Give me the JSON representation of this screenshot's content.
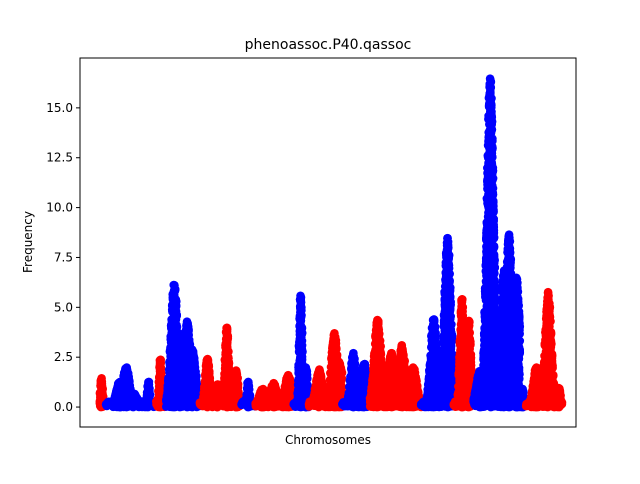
{
  "chart_data": {
    "type": "scatter",
    "title": "phenoassoc.P40.qassoc",
    "xlabel": "Chromosomes",
    "ylabel": "Frequency",
    "xlim": [
      0,
      100
    ],
    "ylim": [
      -1,
      17.5
    ],
    "yticks": [
      0.0,
      2.5,
      5.0,
      7.5,
      10.0,
      12.5,
      15.0
    ],
    "ytick_labels": [
      "0.0",
      "2.5",
      "5.0",
      "7.5",
      "10.0",
      "12.5",
      "15.0"
    ],
    "x_ticks_shown": false,
    "grid": false,
    "legend": "none",
    "colors": {
      "odd_chromosome": "#0000ff",
      "even_chromosome": "#ff0000"
    },
    "series": [
      {
        "chromosome": 1,
        "color": "#ff0000",
        "x_start": 4.0,
        "x_end": 5.0,
        "peaks": [
          {
            "x": 4.3,
            "y": 1.5
          }
        ]
      },
      {
        "chromosome": 2,
        "color": "#0000ff",
        "x_start": 5.3,
        "x_end": 13.0,
        "peaks": [
          {
            "x": 8.0,
            "y": 1.3
          },
          {
            "x": 9.3,
            "y": 2.0
          },
          {
            "x": 10.8,
            "y": 0.7
          }
        ]
      },
      {
        "chromosome": 3,
        "color": "#0000ff",
        "x_start": 13.0,
        "x_end": 15.4,
        "peaks": [
          {
            "x": 13.8,
            "y": 1.3
          }
        ]
      },
      {
        "chromosome": 4,
        "color": "#ff0000",
        "x_start": 15.4,
        "x_end": 17.4,
        "peaks": [
          {
            "x": 16.2,
            "y": 2.5
          }
        ]
      },
      {
        "chromosome": 5,
        "color": "#0000ff",
        "x_start": 17.4,
        "x_end": 24.2,
        "peaks": [
          {
            "x": 19.0,
            "y": 6.2
          },
          {
            "x": 20.2,
            "y": 3.7
          },
          {
            "x": 21.6,
            "y": 4.3
          },
          {
            "x": 22.7,
            "y": 2.9
          }
        ]
      },
      {
        "chromosome": 6,
        "color": "#ff0000",
        "x_start": 24.2,
        "x_end": 28.9,
        "peaks": [
          {
            "x": 25.7,
            "y": 2.5
          },
          {
            "x": 27.8,
            "y": 1.2
          }
        ]
      },
      {
        "chromosome": 7,
        "color": "#ff0000",
        "x_start": 28.9,
        "x_end": 32.6,
        "peaks": [
          {
            "x": 29.6,
            "y": 4.1
          },
          {
            "x": 31.5,
            "y": 1.9
          }
        ]
      },
      {
        "chromosome": 8,
        "color": "#0000ff",
        "x_start": 32.6,
        "x_end": 35.4,
        "peaks": [
          {
            "x": 33.9,
            "y": 1.3
          }
        ]
      },
      {
        "chromosome": 9,
        "color": "#ff0000",
        "x_start": 35.4,
        "x_end": 43.1,
        "peaks": [
          {
            "x": 36.8,
            "y": 0.9
          },
          {
            "x": 39.0,
            "y": 1.2
          },
          {
            "x": 42.0,
            "y": 1.6
          }
        ]
      },
      {
        "chromosome": 10,
        "color": "#0000ff",
        "x_start": 43.1,
        "x_end": 46.2,
        "peaks": [
          {
            "x": 44.5,
            "y": 5.6
          },
          {
            "x": 45.6,
            "y": 2.0
          }
        ]
      },
      {
        "chromosome": 11,
        "color": "#ff0000",
        "x_start": 46.2,
        "x_end": 52.9,
        "peaks": [
          {
            "x": 48.2,
            "y": 1.9
          },
          {
            "x": 51.3,
            "y": 3.7
          },
          {
            "x": 52.3,
            "y": 2.3
          }
        ]
      },
      {
        "chromosome": 12,
        "color": "#0000ff",
        "x_start": 52.9,
        "x_end": 58.5,
        "peaks": [
          {
            "x": 55.1,
            "y": 2.7
          },
          {
            "x": 57.3,
            "y": 2.2
          }
        ]
      },
      {
        "chromosome": 13,
        "color": "#ff0000",
        "x_start": 58.5,
        "x_end": 68.8,
        "peaks": [
          {
            "x": 60.0,
            "y": 4.4
          },
          {
            "x": 62.8,
            "y": 2.7
          },
          {
            "x": 64.9,
            "y": 3.1
          },
          {
            "x": 67.2,
            "y": 2.0
          }
        ]
      },
      {
        "chromosome": 14,
        "color": "#0000ff",
        "x_start": 68.8,
        "x_end": 75.4,
        "peaks": [
          {
            "x": 71.3,
            "y": 4.4
          },
          {
            "x": 74.1,
            "y": 8.5
          }
        ]
      },
      {
        "chromosome": 15,
        "color": "#ff0000",
        "x_start": 75.4,
        "x_end": 79.4,
        "peaks": [
          {
            "x": 77.0,
            "y": 5.5
          },
          {
            "x": 78.4,
            "y": 4.5
          }
        ]
      },
      {
        "chromosome": 16,
        "color": "#0000ff",
        "x_start": 79.4,
        "x_end": 88.7,
        "peaks": [
          {
            "x": 80.6,
            "y": 1.8
          },
          {
            "x": 82.7,
            "y": 16.5
          },
          {
            "x": 85.5,
            "y": 6.9
          },
          {
            "x": 86.5,
            "y": 8.7
          },
          {
            "x": 88.0,
            "y": 6.5
          }
        ]
      },
      {
        "chromosome": 17,
        "color": "#0000ff",
        "x_start": 88.7,
        "x_end": 90.0,
        "peaks": [
          {
            "x": 89.2,
            "y": 1.0
          }
        ]
      },
      {
        "chromosome": 18,
        "color": "#ff0000",
        "x_start": 90.0,
        "x_end": 96.2,
        "peaks": [
          {
            "x": 92.0,
            "y": 2.0
          },
          {
            "x": 94.4,
            "y": 5.8
          },
          {
            "x": 95.6,
            "y": 1.0
          }
        ]
      },
      {
        "chromosome": 19,
        "color": "#ff0000",
        "x_start": 96.2,
        "x_end": 97.2,
        "peaks": [
          {
            "x": 96.6,
            "y": 1.0
          }
        ]
      }
    ],
    "outliers": [
      {
        "x": 51.3,
        "y": 3.7,
        "color": "#ff0000"
      }
    ]
  }
}
